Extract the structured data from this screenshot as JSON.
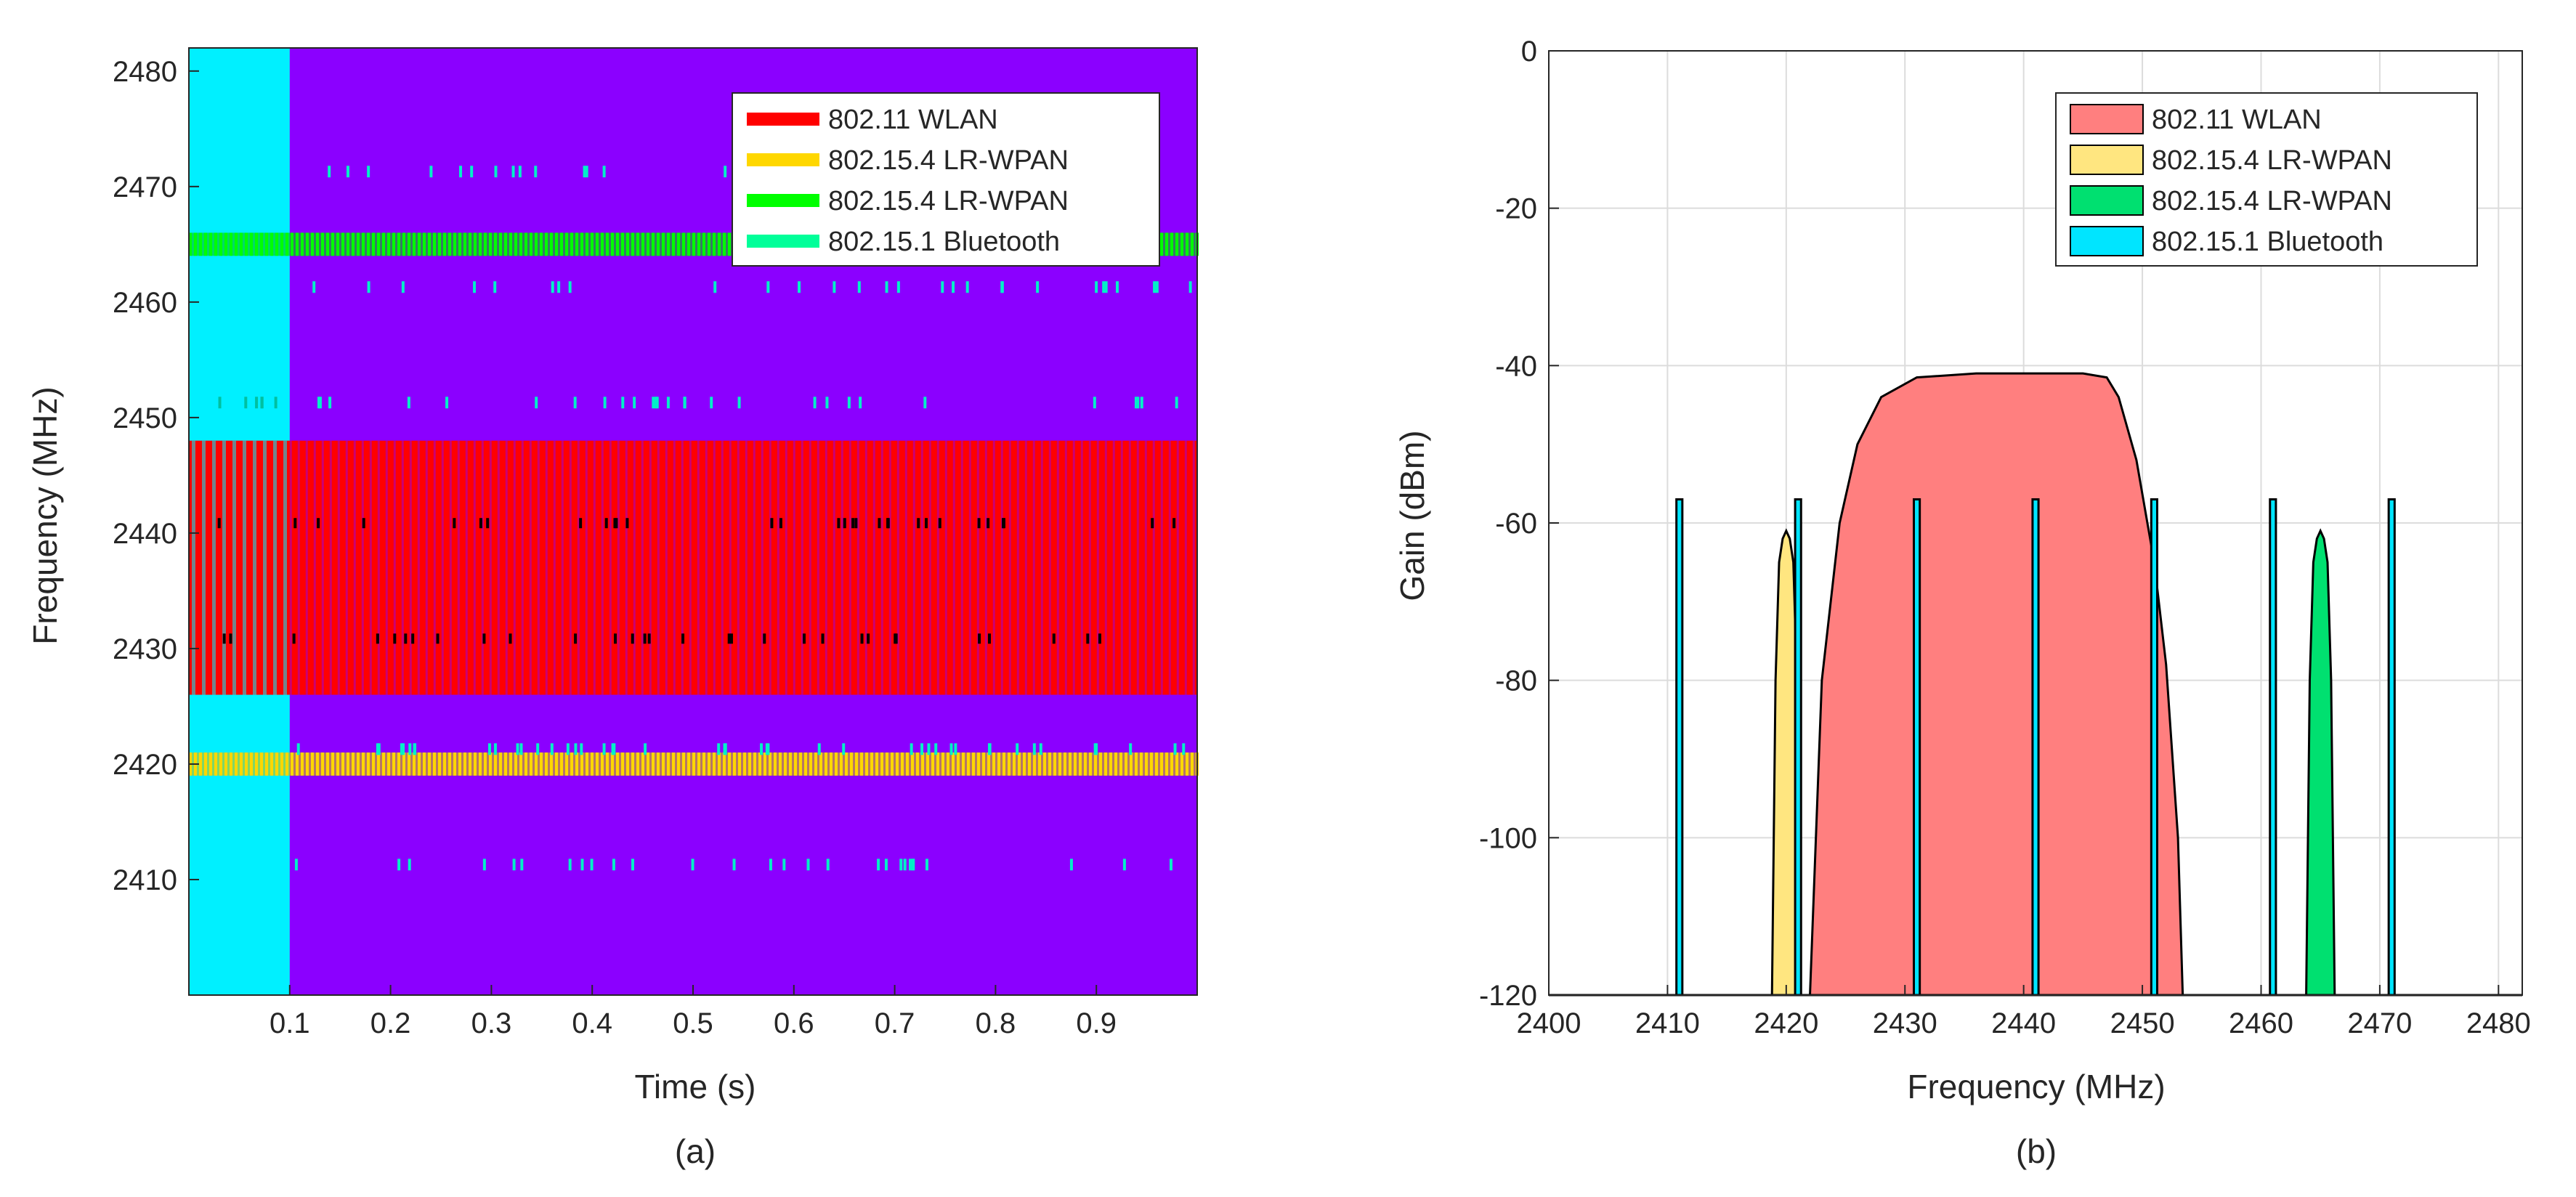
{
  "chart_data": [
    {
      "panel": "(a)",
      "type": "heatmap",
      "title": "",
      "xlabel": "Time (s)",
      "ylabel": "Frequency (MHz)",
      "xlim": [
        0,
        1.0
      ],
      "ylim": [
        2400,
        2482
      ],
      "xticks": [
        0.1,
        0.2,
        0.3,
        0.4,
        0.5,
        0.6,
        0.7,
        0.8,
        0.9
      ],
      "xtick_labels": [
        "0.1",
        "0.2",
        "0.3",
        "0.4",
        "0.5",
        "0.6",
        "0.7",
        "0.8",
        "0.9"
      ],
      "yticks": [
        2410,
        2420,
        2430,
        2440,
        2450,
        2460,
        2470,
        2480
      ],
      "ytick_labels": [
        "2410",
        "2420",
        "2430",
        "2440",
        "2450",
        "2460",
        "2470",
        "2480"
      ],
      "background": {
        "initial_region_color": "#00f0ff",
        "initial_region_end_s": 0.1,
        "main_color": "#8b00ff"
      },
      "bands": [
        {
          "name": "802.11   WLAN",
          "color": "#ff0000",
          "f_low": 2426,
          "f_high": 2448
        },
        {
          "name": "802.15.4 LR-WPAN",
          "color": "#ffd700",
          "f_low": 2419,
          "f_high": 2421
        },
        {
          "name": "802.15.4 LR-WPAN",
          "color": "#00ff00",
          "f_low": 2464,
          "f_high": 2466
        },
        {
          "name": "802.15.1 Bluetooth",
          "color": "#00ff99",
          "channels": [
            2411,
            2451,
            2461,
            2471
          ]
        }
      ],
      "legend": {
        "location": "top-right",
        "entries": [
          {
            "label": "802.11   WLAN",
            "color": "#ff0000"
          },
          {
            "label": "802.15.4 LR-WPAN",
            "color": "#ffd700"
          },
          {
            "label": "802.15.4 LR-WPAN",
            "color": "#00ff00"
          },
          {
            "label": "802.15.1 Bluetooth",
            "color": "#00ff99"
          }
        ]
      },
      "caption": "(a)"
    },
    {
      "panel": "(b)",
      "type": "area",
      "title": "",
      "xlabel": "Frequency (MHz)",
      "ylabel": "Gain (dBm)",
      "xlim": [
        2400,
        2482
      ],
      "ylim": [
        -120,
        0
      ],
      "grid": true,
      "xticks": [
        2400,
        2410,
        2420,
        2430,
        2440,
        2450,
        2460,
        2470,
        2480
      ],
      "xtick_labels": [
        "2400",
        "2410",
        "2420",
        "2430",
        "2440",
        "2450",
        "2460",
        "2470",
        "2480"
      ],
      "yticks": [
        0,
        -20,
        -40,
        -60,
        -80,
        -100,
        -120
      ],
      "ytick_labels": [
        "0",
        "-20",
        "-40",
        "-60",
        "-80",
        "-100",
        "-120"
      ],
      "series": [
        {
          "name": "802.11   WLAN",
          "color": "#ff7f7f",
          "x": [
            2422.0,
            2423.0,
            2424.5,
            2426.0,
            2428.0,
            2431.0,
            2436.0,
            2441.0,
            2445.0,
            2447.0,
            2448.0,
            2449.5,
            2451.0,
            2452.0,
            2453.0,
            2453.4
          ],
          "y": [
            -120,
            -80,
            -60,
            -50,
            -44,
            -41.5,
            -41,
            -41,
            -41,
            -41.5,
            -44,
            -52,
            -65,
            -78,
            -100,
            -120
          ]
        },
        {
          "name": "802.15.4 LR-WPAN",
          "color": "#ffe680",
          "x": [
            2418.8,
            2419.1,
            2419.4,
            2419.7,
            2420.0,
            2420.3,
            2420.6,
            2420.9,
            2421.2
          ],
          "y": [
            -120,
            -80,
            -65,
            -62,
            -61,
            -62,
            -65,
            -80,
            -120
          ]
        },
        {
          "name": "802.15.4 LR-WPAN",
          "color": "#00e070",
          "x": [
            2463.8,
            2464.1,
            2464.4,
            2464.7,
            2465.0,
            2465.3,
            2465.6,
            2465.9,
            2466.2
          ],
          "y": [
            -120,
            -80,
            -65,
            -62,
            -61,
            -62,
            -65,
            -80,
            -120
          ]
        },
        {
          "name": "802.15.1 Bluetooth",
          "color": "#00e5ff",
          "channels": [
            2411,
            2421,
            2431,
            2441,
            2451,
            2461,
            2471
          ],
          "width_mhz": 0.5,
          "peak": -57,
          "floor": -120
        }
      ],
      "legend": {
        "location": "top-right",
        "entries": [
          {
            "label": "802.11   WLAN",
            "color": "#ff7f7f"
          },
          {
            "label": "802.15.4 LR-WPAN",
            "color": "#ffe680"
          },
          {
            "label": "802.15.4 LR-WPAN",
            "color": "#00e070"
          },
          {
            "label": "802.15.1 Bluetooth",
            "color": "#00e5ff"
          }
        ]
      },
      "caption": "(b)"
    }
  ]
}
